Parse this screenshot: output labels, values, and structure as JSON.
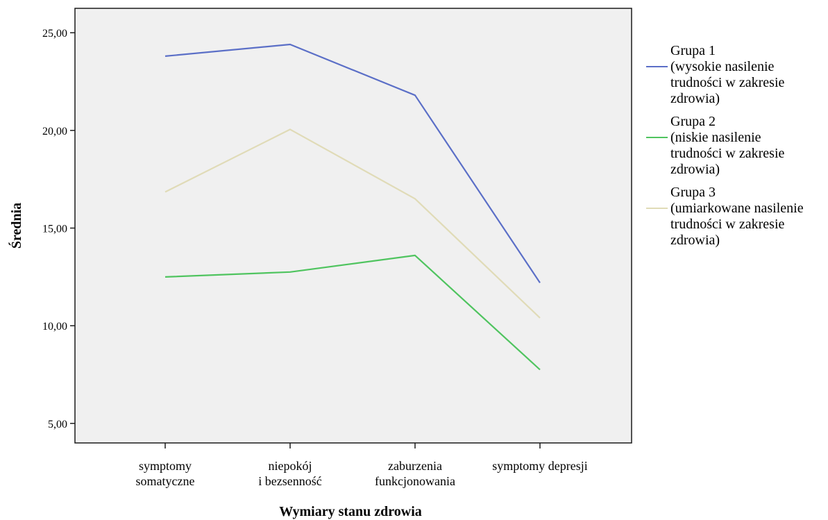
{
  "chart_data": {
    "type": "line",
    "title": "",
    "xlabel": "Wymiary stanu zdrowia",
    "ylabel": "Średnia",
    "categories": [
      [
        "symptomy",
        "somatyczne"
      ],
      [
        "niepokój",
        "i bezsenność"
      ],
      [
        "zaburzenia",
        "funkcjonowania"
      ],
      [
        "symptomy depresji"
      ]
    ],
    "yticks": [
      "5,00",
      "10,00",
      "15,00",
      "20,00",
      "25,00"
    ],
    "ytick_values": [
      5,
      10,
      15,
      20,
      25
    ],
    "ylim": [
      4.0,
      26.25
    ],
    "grid": false,
    "legend_position": "right",
    "series": [
      {
        "name": "Grupa 1",
        "description": "(wysokie nasilenie\ntrudności w zakresie\nzdrowia)",
        "color": "#5b6fc7",
        "values": [
          23.8,
          24.4,
          21.8,
          12.2
        ]
      },
      {
        "name": "Grupa 2",
        "description": "(niskie nasilenie\ntrudności w zakresie\nzdrowia)",
        "color": "#4fc45f",
        "values": [
          12.5,
          12.75,
          13.6,
          7.75
        ]
      },
      {
        "name": "Grupa 3",
        "description": "(umiarkowane nasilenie\ntrudności w zakresie\nzdrowia)",
        "color": "#e0dbb7",
        "values": [
          16.85,
          20.05,
          16.5,
          10.4
        ]
      }
    ]
  }
}
